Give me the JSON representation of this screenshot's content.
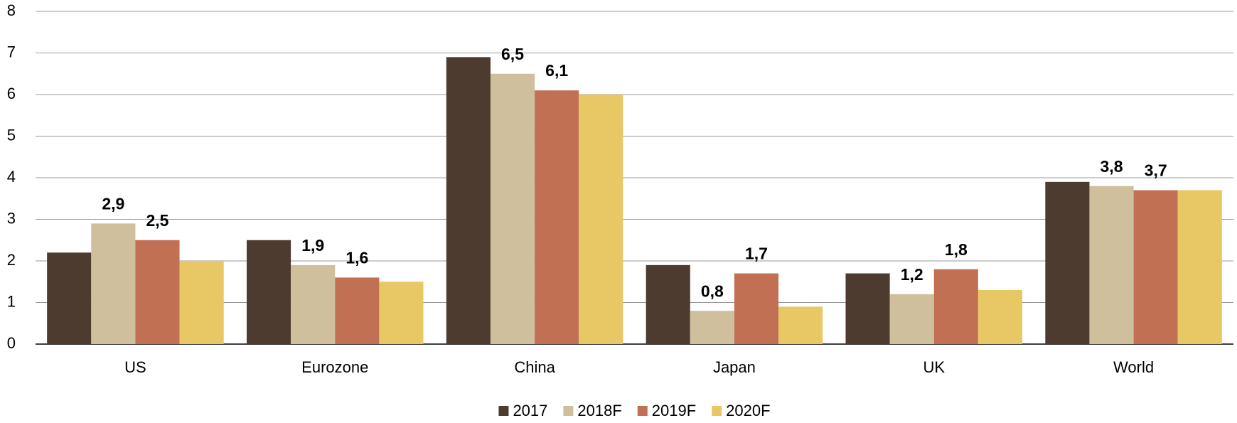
{
  "chart_data": {
    "type": "bar",
    "categories": [
      "US",
      "Eurozone",
      "China",
      "Japan",
      "UK",
      "World"
    ],
    "series": [
      {
        "name": "2017",
        "color": "#4e3b2f",
        "values": [
          2.2,
          2.5,
          6.9,
          1.9,
          1.7,
          3.9
        ]
      },
      {
        "name": "2018F",
        "color": "#d0bf9c",
        "values": [
          2.9,
          1.9,
          6.5,
          0.8,
          1.2,
          3.8
        ],
        "value_labels": [
          "2,9",
          "1,9",
          "6,5",
          "0,8",
          "1,2",
          "3,8"
        ]
      },
      {
        "name": "2019F",
        "color": "#c27054",
        "values": [
          2.5,
          1.6,
          6.1,
          1.7,
          1.8,
          3.7
        ],
        "value_labels": [
          "2,5",
          "1,6",
          "6,1",
          "1,7",
          "1,8",
          "3,7"
        ]
      },
      {
        "name": "2020F",
        "color": "#e8c765",
        "values": [
          2.0,
          1.5,
          6.0,
          0.9,
          1.3,
          3.7
        ]
      }
    ],
    "ylim": [
      0,
      8
    ],
    "yticks": [
      0,
      1,
      2,
      3,
      4,
      5,
      6,
      7,
      8
    ],
    "grid": true,
    "legend": "bottom"
  }
}
